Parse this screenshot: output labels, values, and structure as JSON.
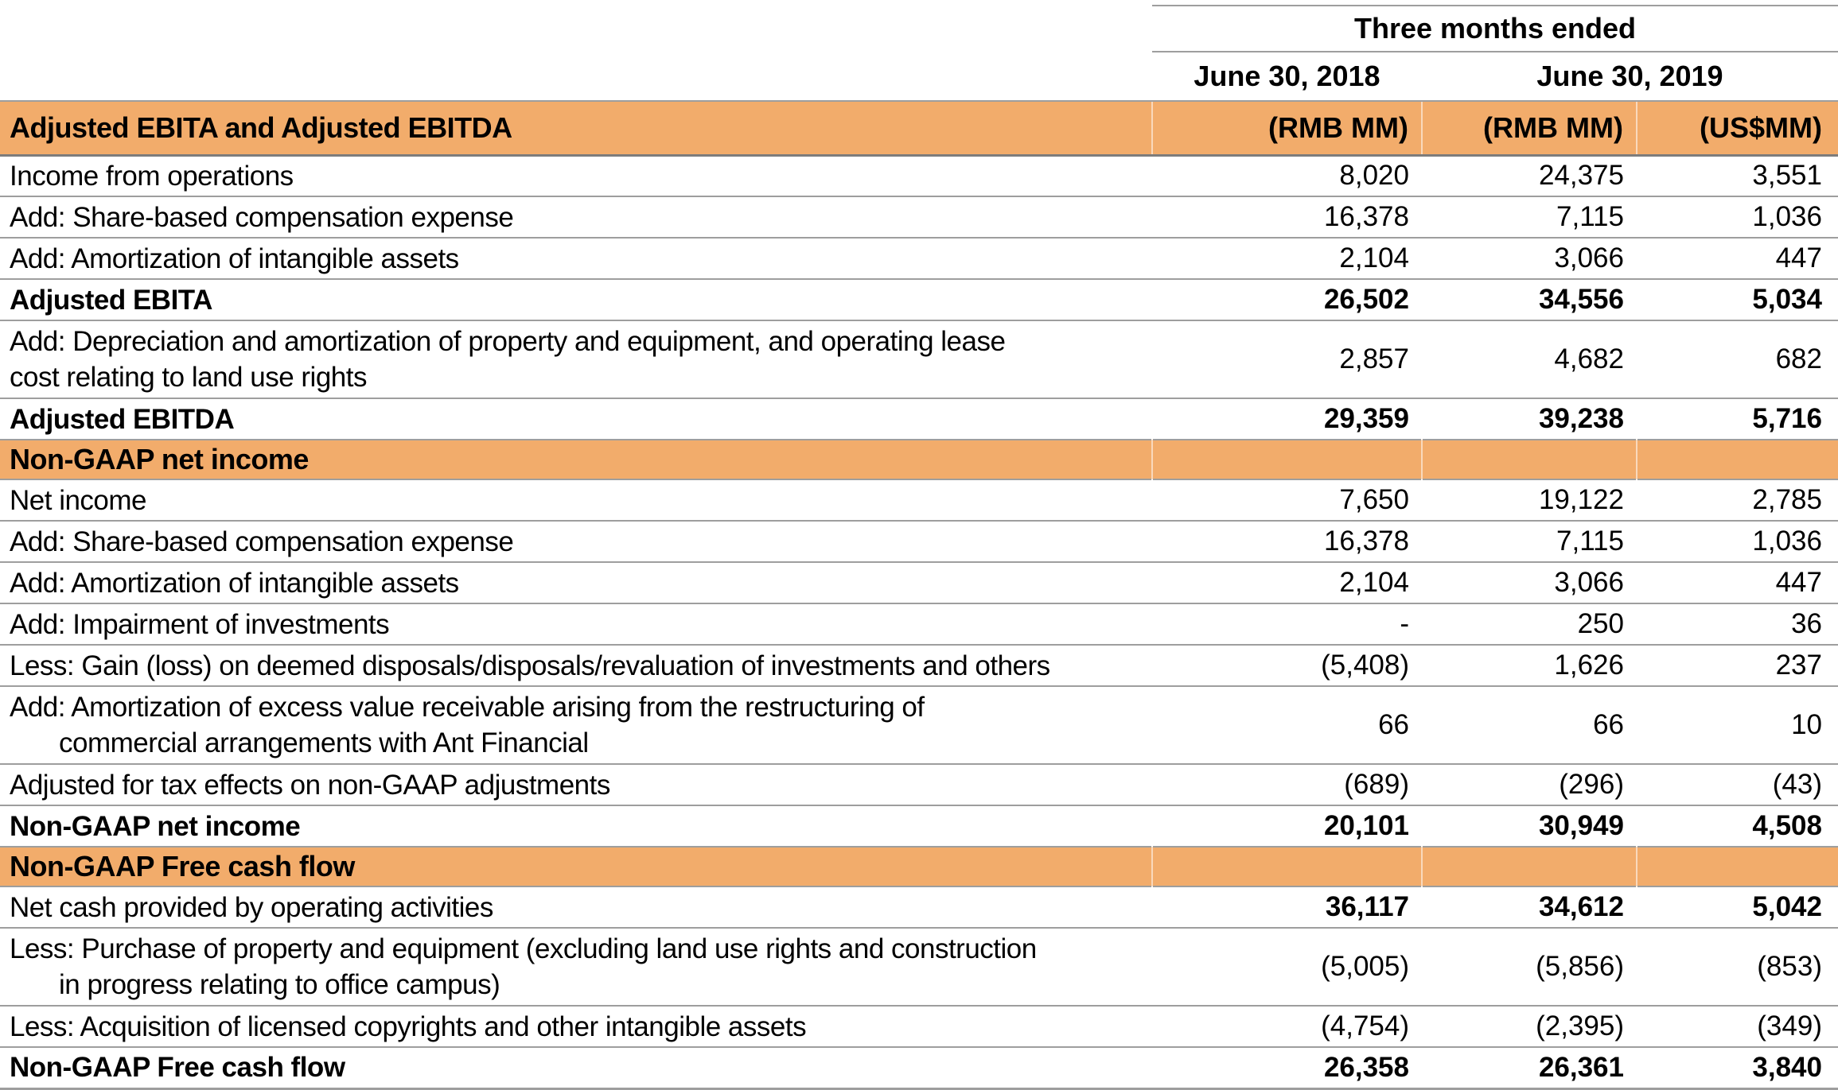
{
  "header": {
    "group_title": "Three months ended",
    "date_col_1": "June 30, 2018",
    "date_col_2": "June 30, 2019"
  },
  "colors": {
    "section_band": "#F2AC6B",
    "row_line": "#9E9E9E",
    "row_line_dark": "#7D7D7D",
    "band_divider": "rgba(255,255,255,0.55)",
    "text": "#000000"
  },
  "table": {
    "rows": [
      {
        "type": "section",
        "label": "Adjusted EBITA and Adjusted EBITDA",
        "units": [
          "(RMB MM)",
          "(RMB MM)",
          "(US$MM)"
        ]
      },
      {
        "type": "data",
        "label_lines": [
          {
            "text": "Income from operations",
            "indent": false
          }
        ],
        "values": [
          "8,020",
          "24,375",
          "3,551"
        ],
        "label_bold": false,
        "values_bold": false
      },
      {
        "type": "data",
        "label_lines": [
          {
            "text": "Add: Share-based compensation expense",
            "indent": false
          }
        ],
        "values": [
          "16,378",
          "7,115",
          "1,036"
        ],
        "label_bold": false,
        "values_bold": false
      },
      {
        "type": "data",
        "label_lines": [
          {
            "text": "Add: Amortization of intangible assets",
            "indent": false
          }
        ],
        "values": [
          "2,104",
          "3,066",
          "447"
        ],
        "label_bold": false,
        "values_bold": false
      },
      {
        "type": "data",
        "label_lines": [
          {
            "text": "Adjusted EBITA",
            "indent": false
          }
        ],
        "values": [
          "26,502",
          "34,556",
          "5,034"
        ],
        "label_bold": true,
        "values_bold": true
      },
      {
        "type": "data",
        "label_lines": [
          {
            "text": "Add: Depreciation and amortization of property and equipment, and operating lease",
            "indent": false
          },
          {
            "text": "cost relating to land use rights",
            "indent": false
          }
        ],
        "values": [
          "2,857",
          "4,682",
          "682"
        ],
        "label_bold": false,
        "values_bold": false
      },
      {
        "type": "data",
        "label_lines": [
          {
            "text": "Adjusted EBITDA",
            "indent": false
          }
        ],
        "values": [
          "29,359",
          "39,238",
          "5,716"
        ],
        "label_bold": true,
        "values_bold": true
      },
      {
        "type": "section",
        "label": "Non-GAAP net income",
        "units": null
      },
      {
        "type": "data",
        "label_lines": [
          {
            "text": "Net income",
            "indent": false
          }
        ],
        "values": [
          "7,650",
          "19,122",
          "2,785"
        ],
        "label_bold": false,
        "values_bold": false
      },
      {
        "type": "data",
        "label_lines": [
          {
            "text": "Add: Share-based compensation expense",
            "indent": false
          }
        ],
        "values": [
          "16,378",
          "7,115",
          "1,036"
        ],
        "label_bold": false,
        "values_bold": false
      },
      {
        "type": "data",
        "label_lines": [
          {
            "text": "Add: Amortization of intangible assets",
            "indent": false
          }
        ],
        "values": [
          "2,104",
          "3,066",
          "447"
        ],
        "label_bold": false,
        "values_bold": false
      },
      {
        "type": "data",
        "label_lines": [
          {
            "text": "Add: Impairment of investments",
            "indent": false
          }
        ],
        "values": [
          "-",
          "250",
          "36"
        ],
        "label_bold": false,
        "values_bold": false
      },
      {
        "type": "data",
        "label_lines": [
          {
            "text": "Less: Gain (loss) on deemed disposals/disposals/revaluation of investments and others",
            "indent": false
          }
        ],
        "values": [
          "(5,408)",
          "1,626",
          "237"
        ],
        "label_bold": false,
        "values_bold": false
      },
      {
        "type": "data",
        "label_lines": [
          {
            "text": "Add: Amortization of excess value receivable arising from the restructuring of",
            "indent": false
          },
          {
            "text": "commercial arrangements with Ant Financial",
            "indent": true
          }
        ],
        "values": [
          "66",
          "66",
          "10"
        ],
        "label_bold": false,
        "values_bold": false
      },
      {
        "type": "data",
        "label_lines": [
          {
            "text": "Adjusted for tax effects on non-GAAP adjustments",
            "indent": false
          }
        ],
        "values": [
          "(689)",
          "(296)",
          "(43)"
        ],
        "label_bold": false,
        "values_bold": false
      },
      {
        "type": "data",
        "label_lines": [
          {
            "text": "Non-GAAP net income",
            "indent": false
          }
        ],
        "values": [
          "20,101",
          "30,949",
          "4,508"
        ],
        "label_bold": true,
        "values_bold": true
      },
      {
        "type": "section",
        "label": "Non-GAAP Free cash flow",
        "units": null
      },
      {
        "type": "data",
        "label_lines": [
          {
            "text": "Net cash provided by operating activities",
            "indent": false
          }
        ],
        "values": [
          "36,117",
          "34,612",
          "5,042"
        ],
        "label_bold": false,
        "values_bold": true
      },
      {
        "type": "data",
        "label_lines": [
          {
            "text": "Less: Purchase of property and equipment (excluding land use rights and construction",
            "indent": false
          },
          {
            "text": "in progress relating to office campus)",
            "indent": true
          }
        ],
        "values": [
          "(5,005)",
          "(5,856)",
          "(853)"
        ],
        "label_bold": false,
        "values_bold": false
      },
      {
        "type": "data",
        "label_lines": [
          {
            "text": "Less: Acquisition of licensed copyrights and other intangible assets",
            "indent": false
          }
        ],
        "values": [
          "(4,754)",
          "(2,395)",
          "(349)"
        ],
        "label_bold": false,
        "values_bold": false
      },
      {
        "type": "data",
        "label_lines": [
          {
            "text": "Non-GAAP Free cash flow",
            "indent": false
          }
        ],
        "values": [
          "26,358",
          "26,361",
          "3,840"
        ],
        "label_bold": true,
        "values_bold": true
      }
    ]
  }
}
